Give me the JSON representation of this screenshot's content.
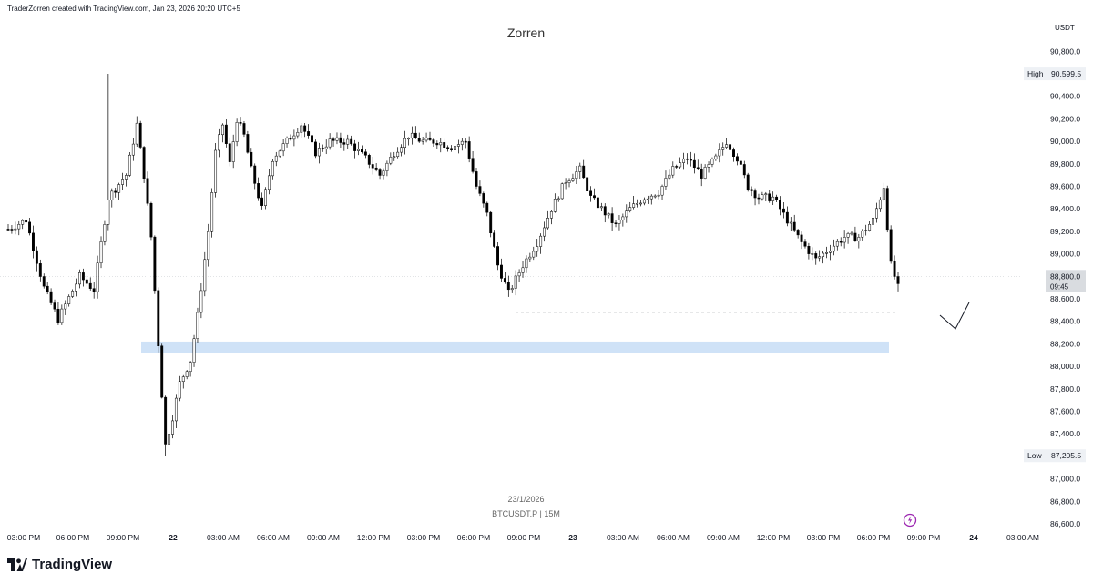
{
  "header": {
    "created_by": "TraderZorren created with TradingView.com, Jan 23, 2026 20:20 UTC+5"
  },
  "title": "Zorren",
  "watermark": {
    "date": "23/1/2026",
    "symbol": "BTCUSDT.P | 15M"
  },
  "logo": {
    "name": "TradingView"
  },
  "price_axis": {
    "currency": "USDT"
  },
  "markers": {
    "high_label": "High",
    "high_value": "90,599.5",
    "low_label": "Low",
    "low_value": "87,205.5",
    "last_price": "88,800.0",
    "countdown": "09:45"
  },
  "colors": {
    "up": "#ffffff",
    "down": "#000000",
    "zone": "#cfe2f7",
    "line": "#9aa0a6",
    "alert": "#9c27b0"
  },
  "icons": [
    "tradingview-logo-icon",
    "alert-clock-icon"
  ],
  "chart_data": {
    "type": "candlestick",
    "symbol": "BTCUSDT.P",
    "timeframe": "15M",
    "title": "Zorren",
    "y_range": [
      86500,
      91000
    ],
    "y_ticks": [
      90800,
      90600,
      90400,
      90200,
      90000,
      89800,
      89600,
      89400,
      89200,
      89000,
      88800,
      88600,
      88400,
      88200,
      88000,
      87800,
      87600,
      87400,
      87200,
      87000,
      86800,
      86600
    ],
    "y_tick_labels": [
      "90,800.0",
      "90,600.0",
      "90,400.0",
      "90,200.0",
      "90,000.0",
      "89,800.0",
      "89,600.0",
      "89,400.0",
      "89,200.0",
      "89,000.0",
      "88,800.0",
      "88,600.0",
      "88,400.0",
      "88,200.0",
      "88,000.0",
      "87,800.0",
      "87,600.0",
      "87,400.0",
      "87,200.0",
      "87,000.0",
      "86,800.0",
      "86,600.0"
    ],
    "x_tick_labels": [
      "03:00 PM",
      "06:00 PM",
      "09:00 PM",
      "22",
      "03:00 AM",
      "06:00 AM",
      "09:00 AM",
      "12:00 PM",
      "03:00 PM",
      "06:00 PM",
      "09:00 PM",
      "23",
      "03:00 AM",
      "06:00 AM",
      "09:00 AM",
      "12:00 PM",
      "03:00 PM",
      "06:00 PM",
      "09:00 PM",
      "24",
      "03:00 AM"
    ],
    "high": 90599.5,
    "low": 87205.5,
    "last": 88800.0,
    "zone": {
      "from_price": 88120,
      "to_price": 88220,
      "from_time": "Jan 21 09:45 PM",
      "to_time": "Jan 23 07:00 PM"
    },
    "dashed_level": {
      "price": 88480,
      "from_time": "Jan 22 09:00 PM",
      "to_time": "Jan 23 07:15 PM"
    },
    "close_path": [
      [
        0,
        89220
      ],
      [
        5,
        89300
      ],
      [
        10,
        88700
      ],
      [
        14,
        88420
      ],
      [
        20,
        88800
      ],
      [
        24,
        88680
      ],
      [
        28,
        89500
      ],
      [
        33,
        89700
      ],
      [
        36,
        90150
      ],
      [
        38,
        89700
      ],
      [
        40,
        89150
      ],
      [
        42,
        88200
      ],
      [
        44,
        87300
      ],
      [
        46,
        87550
      ],
      [
        48,
        87850
      ],
      [
        51,
        88050
      ],
      [
        53,
        88450
      ],
      [
        56,
        89200
      ],
      [
        58,
        89900
      ],
      [
        60,
        90150
      ],
      [
        62,
        89800
      ],
      [
        64,
        90200
      ],
      [
        66,
        90050
      ],
      [
        68,
        89750
      ],
      [
        71,
        89400
      ],
      [
        74,
        89850
      ],
      [
        78,
        90000
      ],
      [
        82,
        90150
      ],
      [
        86,
        89900
      ],
      [
        90,
        90000
      ],
      [
        95,
        90000
      ],
      [
        100,
        89850
      ],
      [
        104,
        89700
      ],
      [
        108,
        89900
      ],
      [
        112,
        90050
      ],
      [
        116,
        90000
      ],
      [
        120,
        90000
      ],
      [
        124,
        89950
      ],
      [
        128,
        90000
      ],
      [
        131,
        89600
      ],
      [
        134,
        89350
      ],
      [
        137,
        88900
      ],
      [
        140,
        88650
      ],
      [
        144,
        88900
      ],
      [
        148,
        89100
      ],
      [
        152,
        89400
      ],
      [
        156,
        89650
      ],
      [
        160,
        89750
      ],
      [
        163,
        89500
      ],
      [
        166,
        89400
      ],
      [
        170,
        89250
      ],
      [
        174,
        89400
      ],
      [
        178,
        89500
      ],
      [
        182,
        89550
      ],
      [
        186,
        89750
      ],
      [
        190,
        89850
      ],
      [
        194,
        89700
      ],
      [
        198,
        89850
      ],
      [
        201,
        90000
      ],
      [
        204,
        89850
      ],
      [
        207,
        89600
      ],
      [
        210,
        89500
      ],
      [
        214,
        89500
      ],
      [
        218,
        89300
      ],
      [
        222,
        89100
      ],
      [
        226,
        88950
      ],
      [
        230,
        89050
      ],
      [
        234,
        89150
      ],
      [
        238,
        89150
      ],
      [
        242,
        89300
      ],
      [
        245,
        89600
      ],
      [
        247,
        88900
      ],
      [
        249,
        88700
      ],
      [
        250,
        88800
      ]
    ],
    "candle_count": 250
  }
}
